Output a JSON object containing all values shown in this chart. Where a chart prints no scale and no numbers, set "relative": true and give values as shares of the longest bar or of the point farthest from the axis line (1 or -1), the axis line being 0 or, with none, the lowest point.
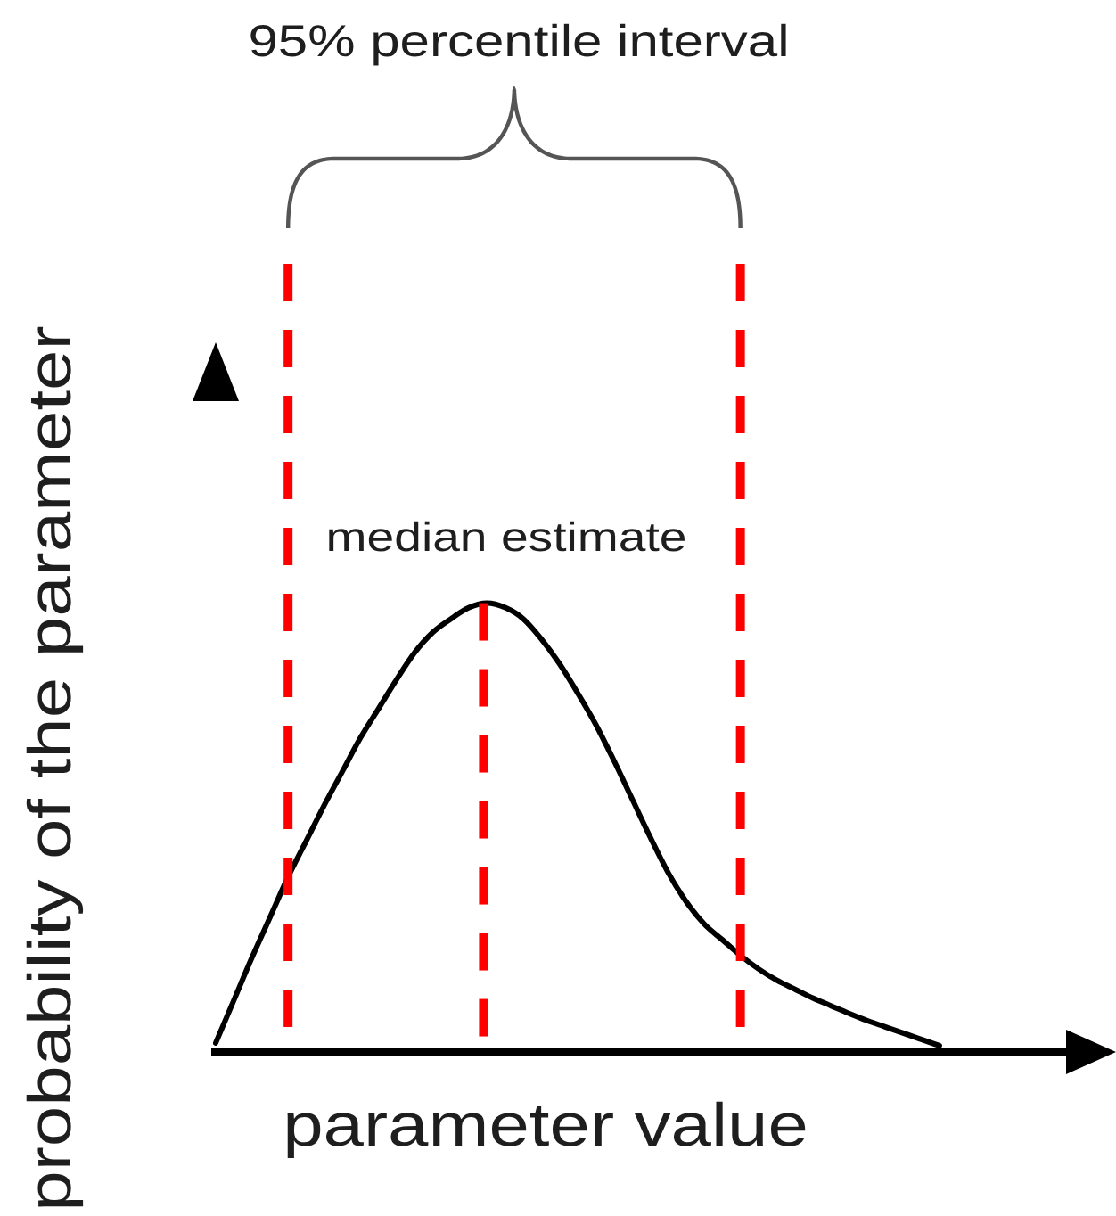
{
  "chart_data": {
    "type": "line",
    "xlabel": "parameter value",
    "ylabel": "probability of the parameter",
    "annotations": [
      "95% percentile interval",
      "median estimate"
    ],
    "categories": [
      null,
      null,
      null,
      null,
      null,
      null,
      null,
      null,
      null,
      null,
      null,
      null,
      null,
      null,
      null,
      null,
      null,
      null,
      null,
      null,
      null,
      null,
      null,
      null,
      null,
      null,
      null,
      null,
      null,
      null,
      null,
      null,
      null,
      null,
      null,
      null,
      null,
      null,
      null,
      null,
      null,
      null,
      null,
      null,
      null,
      null,
      null,
      null
    ],
    "values": [
      0.02,
      0.115,
      0.21,
      0.3,
      0.39,
      0.47,
      0.55,
      0.625,
      0.7,
      0.765,
      0.83,
      0.89,
      0.935,
      0.965,
      0.99,
      1.0,
      0.99,
      0.965,
      0.92,
      0.865,
      0.8,
      0.73,
      0.65,
      0.565,
      0.48,
      0.4,
      0.335,
      0.285,
      0.25,
      0.215,
      0.185,
      0.16,
      0.14,
      0.12,
      0.103,
      0.086,
      0.07,
      0.056,
      0.042,
      0.028,
      0.014,
      null,
      null,
      null,
      null,
      null,
      null,
      null
    ],
    "color": "#000000",
    "relative": true,
    "marker": "none"
  }
}
